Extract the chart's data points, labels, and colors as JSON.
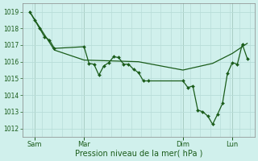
{
  "background_color": "#d0f0ec",
  "grid_color": "#b8ddd8",
  "line_color": "#1a5c1a",
  "xlabel": "Pression niveau de la mer( hPa )",
  "ylim": [
    1011.5,
    1019.5
  ],
  "yticks": [
    1012,
    1013,
    1014,
    1015,
    1016,
    1017,
    1018,
    1019
  ],
  "xlim": [
    -3,
    91
  ],
  "xtick_positions": [
    2,
    22,
    62,
    82
  ],
  "xtick_labels": [
    "Sam",
    "Mar",
    "Dim",
    "Lun"
  ],
  "vline_positions": [
    2,
    22,
    62,
    82
  ],
  "line1_x": [
    0,
    2,
    4,
    6,
    8,
    10,
    22,
    24,
    26,
    28,
    30,
    32,
    34,
    36,
    38,
    40,
    42,
    44,
    46,
    48,
    62,
    64,
    66,
    68,
    70,
    72,
    74,
    76,
    78,
    80,
    82,
    84,
    86,
    88
  ],
  "line1_y": [
    1019.0,
    1018.5,
    1018.0,
    1017.5,
    1017.3,
    1016.8,
    1016.9,
    1015.9,
    1015.85,
    1015.2,
    1015.75,
    1015.95,
    1016.3,
    1016.25,
    1015.85,
    1015.85,
    1015.55,
    1015.35,
    1014.85,
    1014.85,
    1014.85,
    1014.45,
    1014.55,
    1013.1,
    1013.0,
    1012.75,
    1012.25,
    1012.85,
    1013.5,
    1015.3,
    1015.95,
    1015.85,
    1017.05,
    1016.2
  ],
  "line2_x": [
    0,
    10,
    22,
    44,
    62,
    74,
    82,
    88
  ],
  "line2_y": [
    1019.0,
    1016.7,
    1016.1,
    1016.0,
    1015.5,
    1015.9,
    1016.5,
    1017.1
  ],
  "marker_size": 2.0,
  "linewidth1": 0.9,
  "linewidth2": 0.9
}
